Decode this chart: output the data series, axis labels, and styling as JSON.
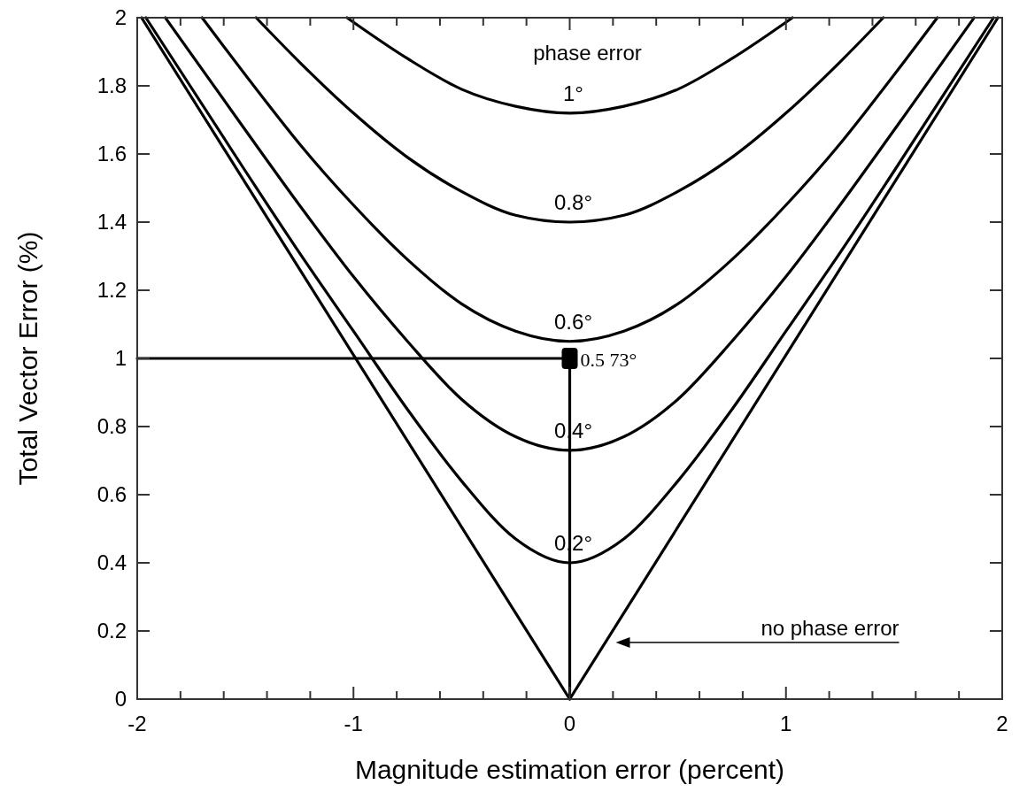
{
  "chart_data": {
    "type": "line",
    "xlabel": "Magnitude estimation error (percent)",
    "ylabel": "Total Vector Error (%)",
    "xlim": [
      -2,
      2
    ],
    "ylim": [
      0,
      2
    ],
    "xticks": [
      -2,
      {
        "value": -1.8,
        "label": null
      },
      {
        "value": -1.6,
        "label": null
      },
      {
        "value": -1.4,
        "label": null
      },
      {
        "value": -1.2,
        "label": null
      },
      -1,
      {
        "value": -0.8,
        "label": null
      },
      {
        "value": -0.6,
        "label": null
      },
      {
        "value": -0.4,
        "label": null
      },
      {
        "value": -0.2,
        "label": null
      },
      0,
      {
        "value": 0.2,
        "label": null
      },
      {
        "value": 0.4,
        "label": null
      },
      {
        "value": 0.6,
        "label": null
      },
      {
        "value": 0.8,
        "label": null
      },
      1,
      {
        "value": 1.2,
        "label": null
      },
      {
        "value": 1.4,
        "label": null
      },
      {
        "value": 1.6,
        "label": null
      },
      {
        "value": 1.8,
        "label": null
      },
      2
    ],
    "yticks": [
      0,
      0.2,
      0.4,
      0.6,
      0.8,
      1,
      1.2,
      1.4,
      1.6,
      1.8,
      2
    ],
    "grid": false,
    "marker": "none",
    "line_style": "solid",
    "series": [
      {
        "name": "1°",
        "color": "#000000",
        "x": [
          -1.03,
          -0.75,
          -0.5,
          -0.25,
          0,
          0.25,
          0.5,
          0.75,
          1.03
        ],
        "values": [
          2,
          1.88,
          1.79,
          1.74,
          1.72,
          1.74,
          1.79,
          1.88,
          2
        ]
      },
      {
        "name": "0.8°",
        "color": "#000000",
        "x": [
          -1.45,
          -1.25,
          -1,
          -0.75,
          -0.5,
          -0.25,
          0,
          0.25,
          0.5,
          0.75,
          1,
          1.25,
          1.45
        ],
        "values": [
          2,
          1.87,
          1.72,
          1.59,
          1.49,
          1.42,
          1.4,
          1.42,
          1.49,
          1.59,
          1.72,
          1.87,
          2
        ]
      },
      {
        "name": "0.6°",
        "color": "#000000",
        "x": [
          -1.7,
          -1.4,
          -1.25,
          -1,
          -0.75,
          -0.5,
          -0.25,
          0,
          0.25,
          0.5,
          0.75,
          1,
          1.25,
          1.4,
          1.7
        ],
        "values": [
          2,
          1.75,
          1.63,
          1.45,
          1.29,
          1.16,
          1.08,
          1.05,
          1.08,
          1.16,
          1.29,
          1.45,
          1.63,
          1.75,
          2
        ]
      },
      {
        "name": "0.4°",
        "color": "#000000",
        "x": [
          -1.87,
          -1.5,
          -1.25,
          -1,
          -0.75,
          -0.5,
          -0.25,
          0,
          0.25,
          0.5,
          0.75,
          1,
          1.25,
          1.5,
          1.87
        ],
        "values": [
          2,
          1.67,
          1.45,
          1.24,
          1.05,
          0.88,
          0.77,
          0.73,
          0.77,
          0.88,
          1.05,
          1.24,
          1.45,
          1.67,
          2
        ]
      },
      {
        "name": "0.2°",
        "color": "#000000",
        "x": [
          -1.96,
          -1.5,
          -1.25,
          -1,
          -0.75,
          -0.5,
          -0.25,
          0,
          0.25,
          0.5,
          0.75,
          1,
          1.25,
          1.5,
          1.96
        ],
        "values": [
          2,
          1.55,
          1.31,
          1.08,
          0.85,
          0.64,
          0.47,
          0.4,
          0.47,
          0.64,
          0.85,
          1.08,
          1.31,
          1.55,
          2
        ]
      },
      {
        "color": "#000000",
        "x": [
          -1.98,
          0,
          1.98
        ],
        "values": [
          2,
          0,
          2
        ]
      },
      {
        "color": "#000000",
        "x": [
          -2,
          0,
          0
        ],
        "values": [
          1,
          1,
          0
        ]
      },
      {
        "type": "scatter",
        "marker": "square",
        "color": "#000000",
        "x": [
          0
        ],
        "values": [
          1
        ]
      }
    ],
    "annotations": [
      "phase error",
      {
        "text": "0.5 73°",
        "x": 0,
        "y": 1
      },
      "no phase error"
    ]
  }
}
